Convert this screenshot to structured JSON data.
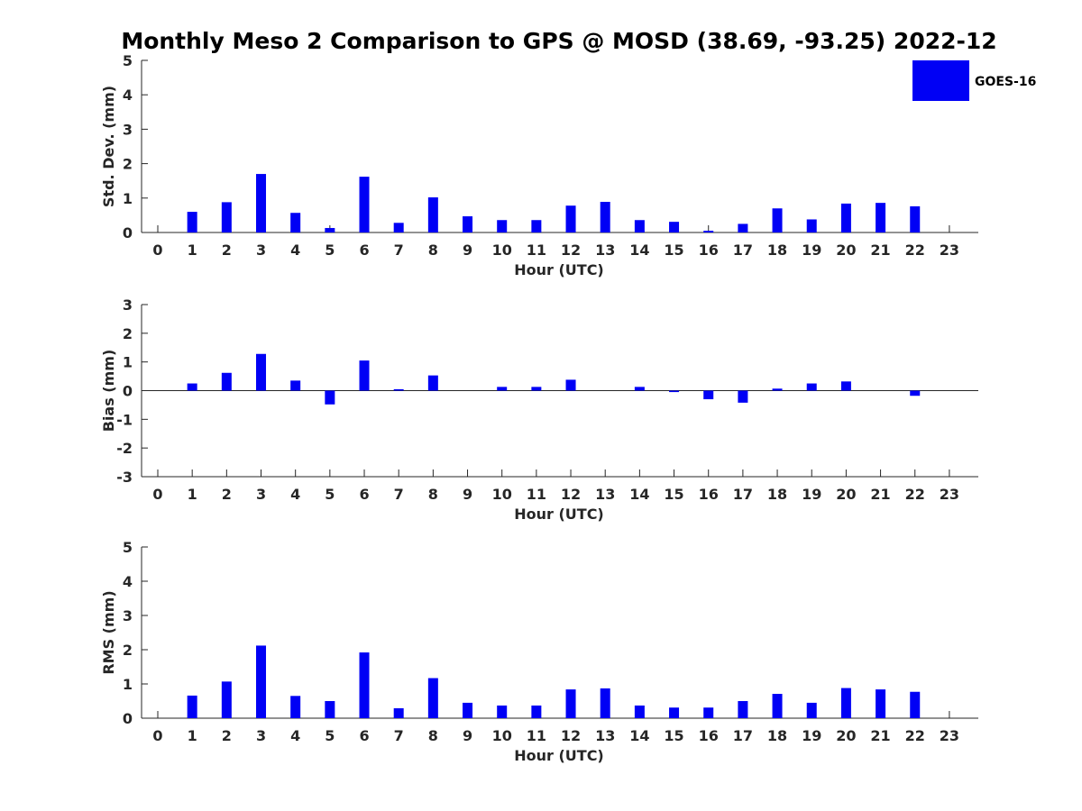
{
  "title": "Monthly Meso 2 Comparison to GPS @ MOSD (38.69, -93.25) 2022-12",
  "legend": {
    "label": "GOES-16",
    "color": "#0000f5",
    "placement": "top-right"
  },
  "chart_data": [
    {
      "type": "bar",
      "ylabel": "Std. Dev. (mm)",
      "xlabel": "Hour (UTC)",
      "ylim": [
        0,
        5
      ],
      "yticks": [
        0,
        1,
        2,
        3,
        4,
        5
      ],
      "categories": [
        0,
        1,
        2,
        3,
        4,
        5,
        6,
        7,
        8,
        9,
        10,
        11,
        12,
        13,
        14,
        15,
        16,
        17,
        18,
        19,
        20,
        21,
        22,
        23
      ],
      "series": [
        {
          "name": "GOES-16",
          "values": [
            0,
            0.6,
            0.88,
            1.7,
            0.57,
            0.13,
            1.62,
            0.28,
            1.02,
            0.47,
            0.36,
            0.36,
            0.78,
            0.89,
            0.36,
            0.31,
            0.05,
            0.25,
            0.7,
            0.38,
            0.84,
            0.86,
            0.76,
            0
          ]
        }
      ]
    },
    {
      "type": "bar",
      "ylabel": "Bias (mm)",
      "xlabel": "Hour (UTC)",
      "ylim": [
        -3,
        3
      ],
      "yticks": [
        -3,
        -2,
        -1,
        0,
        1,
        2,
        3
      ],
      "zero_line": true,
      "categories": [
        0,
        1,
        2,
        3,
        4,
        5,
        6,
        7,
        8,
        9,
        10,
        11,
        12,
        13,
        14,
        15,
        16,
        17,
        18,
        19,
        20,
        21,
        22,
        23
      ],
      "series": [
        {
          "name": "GOES-16",
          "values": [
            0,
            0.25,
            0.62,
            1.28,
            0.35,
            -0.48,
            1.05,
            0.05,
            0.53,
            0,
            0.13,
            0.13,
            0.38,
            0,
            0.13,
            -0.05,
            -0.3,
            -0.42,
            0.07,
            0.25,
            0.32,
            0,
            -0.18,
            0
          ]
        }
      ]
    },
    {
      "type": "bar",
      "ylabel": "RMS (mm)",
      "xlabel": "Hour (UTC)",
      "ylim": [
        0,
        5
      ],
      "yticks": [
        0,
        1,
        2,
        3,
        4,
        5
      ],
      "categories": [
        0,
        1,
        2,
        3,
        4,
        5,
        6,
        7,
        8,
        9,
        10,
        11,
        12,
        13,
        14,
        15,
        16,
        17,
        18,
        19,
        20,
        21,
        22,
        23
      ],
      "series": [
        {
          "name": "GOES-16",
          "values": [
            0,
            0.66,
            1.07,
            2.12,
            0.65,
            0.5,
            1.92,
            0.29,
            1.17,
            0.45,
            0.37,
            0.37,
            0.84,
            0.87,
            0.37,
            0.31,
            0.31,
            0.5,
            0.71,
            0.45,
            0.88,
            0.84,
            0.77,
            0
          ]
        }
      ]
    }
  ]
}
